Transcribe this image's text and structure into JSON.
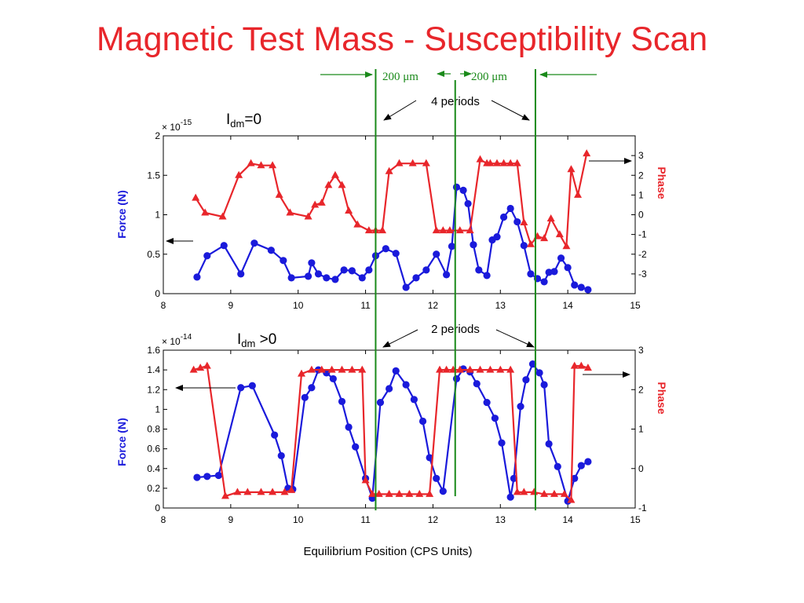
{
  "slide_title": "Magnetic Test Mass - Susceptibility Scan",
  "annotations": {
    "span_left": "200 μm",
    "span_right": "200 μm",
    "top_periods": "4 periods",
    "bottom_periods": "2 periods",
    "top_condition": {
      "main": "I",
      "sub": "dm",
      "rest": "=0"
    },
    "bottom_condition": {
      "main": "I",
      "sub": "dm",
      "rest": " >0"
    },
    "xlabel": "Equilibrium Position (CPS Units)",
    "guide_lines_x": [
      11.15,
      12.33,
      13.52
    ]
  },
  "colors": {
    "title": "#e8262b",
    "force": "#1a1adb",
    "phase": "#e8262b",
    "guides": "#1a8a1a"
  },
  "chart_data": [
    {
      "type": "line",
      "name": "top-panel",
      "xlabel": "",
      "ylabel": "Force (N)",
      "ylabel_right": "Phase",
      "y_scale_label": "× 10",
      "y_scale_exp": "-15",
      "xlim": [
        8,
        15
      ],
      "ylim": [
        0,
        2
      ],
      "ylim_right": [
        -4,
        4
      ],
      "xticks": [
        "8",
        "9",
        "10",
        "11",
        "12",
        "13",
        "14",
        "15"
      ],
      "yticks": [
        "0",
        "0.5",
        "1",
        "1.5",
        "2"
      ],
      "yticks_right": [
        "-3",
        "-2",
        "-1",
        "0",
        "1",
        "2",
        "3"
      ],
      "series": [
        {
          "name": "Force (N)",
          "axis": "left",
          "marker": "circle",
          "x": [
            8.5,
            8.65,
            8.9,
            9.15,
            9.35,
            9.6,
            9.78,
            9.9,
            10.15,
            10.2,
            10.3,
            10.42,
            10.55,
            10.68,
            10.8,
            10.95,
            11.05,
            11.15,
            11.3,
            11.45,
            11.6,
            11.75,
            11.9,
            12.05,
            12.2,
            12.28,
            12.35,
            12.45,
            12.52,
            12.6,
            12.68,
            12.8,
            12.88,
            12.95,
            13.05,
            13.15,
            13.25,
            13.35,
            13.45,
            13.55,
            13.65,
            13.72,
            13.8,
            13.9,
            14.0,
            14.1,
            14.2,
            14.3
          ],
          "y": [
            0.21,
            0.48,
            0.61,
            0.25,
            0.64,
            0.55,
            0.42,
            0.2,
            0.22,
            0.39,
            0.25,
            0.2,
            0.18,
            0.3,
            0.29,
            0.2,
            0.3,
            0.48,
            0.57,
            0.51,
            0.08,
            0.2,
            0.3,
            0.5,
            0.24,
            0.6,
            1.35,
            1.31,
            1.14,
            0.62,
            0.3,
            0.23,
            0.68,
            0.72,
            0.97,
            1.08,
            0.91,
            0.61,
            0.25,
            0.19,
            0.15,
            0.27,
            0.28,
            0.45,
            0.33,
            0.11,
            0.08,
            0.05
          ]
        },
        {
          "name": "Phase",
          "axis": "right",
          "marker": "triangle",
          "x": [
            8.48,
            8.62,
            8.88,
            9.12,
            9.3,
            9.45,
            9.62,
            9.72,
            9.88,
            10.15,
            10.25,
            10.35,
            10.45,
            10.55,
            10.65,
            10.75,
            10.88,
            11.05,
            11.15,
            11.25,
            11.35,
            11.5,
            11.7,
            11.9,
            12.05,
            12.15,
            12.25,
            12.4,
            12.55,
            12.7,
            12.8,
            12.85,
            12.95,
            13.05,
            13.15,
            13.25,
            13.35,
            13.45,
            13.55,
            13.65,
            13.75,
            13.88,
            13.98,
            14.05,
            14.15,
            14.28
          ],
          "y": [
            0.85,
            0.1,
            -0.1,
            2.0,
            2.6,
            2.5,
            2.5,
            1.0,
            0.1,
            -0.1,
            0.5,
            0.6,
            1.5,
            2.0,
            1.5,
            0.2,
            -0.5,
            -0.8,
            -0.8,
            -0.8,
            2.2,
            2.6,
            2.6,
            2.6,
            -0.8,
            -0.8,
            -0.8,
            -0.8,
            -0.8,
            2.8,
            2.6,
            2.6,
            2.6,
            2.6,
            2.6,
            2.6,
            -0.4,
            -1.5,
            -1.1,
            -1.2,
            -0.2,
            -1.0,
            -1.6,
            2.3,
            1.0,
            3.1
          ]
        }
      ]
    },
    {
      "type": "line",
      "name": "bottom-panel",
      "xlabel": "Equilibrium Position (CPS Units)",
      "ylabel": "Force (N)",
      "ylabel_right": "Phase",
      "y_scale_label": "× 10",
      "y_scale_exp": "-14",
      "xlim": [
        8,
        15
      ],
      "ylim": [
        0,
        1.6
      ],
      "ylim_right": [
        -1,
        3
      ],
      "xticks": [
        "8",
        "9",
        "10",
        "11",
        "12",
        "13",
        "14",
        "15"
      ],
      "yticks": [
        "0",
        "0.2",
        "0.4",
        "0.6",
        "0.8",
        "1",
        "1.2",
        "1.4",
        "1.6"
      ],
      "yticks_right": [
        "-1",
        "0",
        "1",
        "2",
        "3"
      ],
      "series": [
        {
          "name": "Force (N)",
          "axis": "left",
          "marker": "circle",
          "x": [
            8.5,
            8.65,
            8.82,
            9.15,
            9.32,
            9.65,
            9.75,
            9.85,
            9.92,
            10.1,
            10.2,
            10.3,
            10.42,
            10.52,
            10.65,
            10.75,
            10.85,
            11.0,
            11.1,
            11.22,
            11.35,
            11.45,
            11.6,
            11.72,
            11.85,
            11.95,
            12.05,
            12.15,
            12.35,
            12.45,
            12.55,
            12.65,
            12.8,
            12.92,
            13.02,
            13.15,
            13.2,
            13.3,
            13.38,
            13.48,
            13.58,
            13.65,
            13.72,
            13.85,
            14.0,
            14.1,
            14.2,
            14.3
          ],
          "y": [
            0.31,
            0.32,
            0.33,
            1.22,
            1.24,
            0.74,
            0.53,
            0.2,
            0.19,
            1.12,
            1.22,
            1.4,
            1.37,
            1.31,
            1.08,
            0.82,
            0.62,
            0.3,
            0.1,
            1.07,
            1.21,
            1.39,
            1.25,
            1.1,
            0.88,
            0.51,
            0.3,
            0.17,
            1.31,
            1.41,
            1.38,
            1.26,
            1.07,
            0.91,
            0.66,
            0.11,
            0.3,
            1.03,
            1.3,
            1.46,
            1.37,
            1.25,
            0.65,
            0.42,
            0.07,
            0.3,
            0.43,
            0.47
          ]
        },
        {
          "name": "Phase",
          "axis": "right",
          "marker": "triangle",
          "x": [
            8.45,
            8.55,
            8.65,
            8.92,
            9.1,
            9.25,
            9.45,
            9.62,
            9.8,
            9.9,
            10.05,
            10.2,
            10.35,
            10.5,
            10.65,
            10.8,
            10.95,
            11.0,
            11.1,
            11.2,
            11.35,
            11.5,
            11.65,
            11.8,
            11.95,
            12.1,
            12.2,
            12.3,
            12.4,
            12.55,
            12.7,
            12.85,
            13.0,
            13.15,
            13.25,
            13.35,
            13.5,
            13.65,
            13.8,
            13.95,
            14.05,
            14.1,
            14.2,
            14.3
          ],
          "y": [
            2.5,
            2.55,
            2.6,
            -0.7,
            -0.6,
            -0.6,
            -0.6,
            -0.6,
            -0.6,
            -0.55,
            2.4,
            2.5,
            2.5,
            2.5,
            2.5,
            2.5,
            2.5,
            -0.3,
            -0.65,
            -0.65,
            -0.65,
            -0.65,
            -0.65,
            -0.65,
            -0.65,
            2.5,
            2.5,
            2.5,
            2.5,
            2.5,
            2.5,
            2.5,
            2.5,
            2.5,
            -0.6,
            -0.6,
            -0.6,
            -0.65,
            -0.65,
            -0.65,
            -0.8,
            2.6,
            2.6,
            2.55
          ]
        }
      ]
    }
  ]
}
